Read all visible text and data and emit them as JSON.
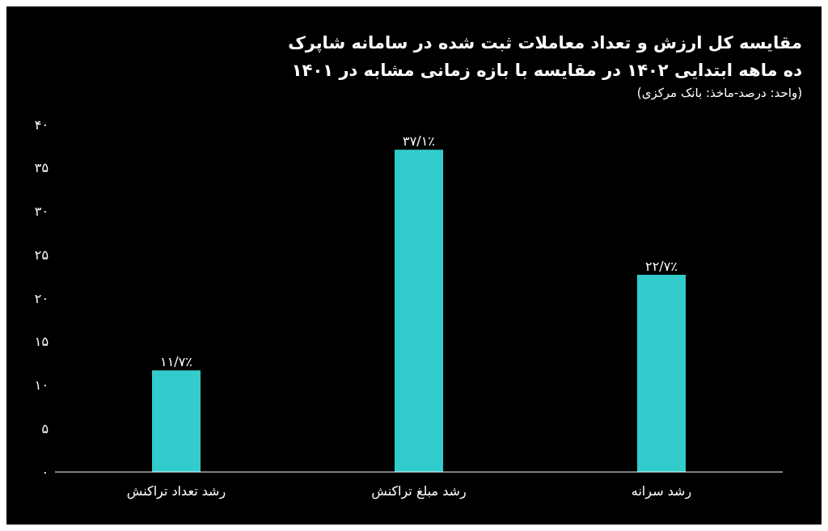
{
  "chart_data": {
    "type": "bar",
    "title": "مقایسه کل ارزش و تعداد معاملات ثبت شده در سامانه شاپرک ده ماهه ابتدایی ۱۴۰۲ در مقایسه با بازه زمانی مشابه در ۱۴۰۱",
    "subtitle": "(واحد: درصد-ماخذ: بانک مرکزی)",
    "categories": [
      "رشد تعداد تراکنش",
      "رشد مبلغ تراکنش",
      "رشد سرانه"
    ],
    "values": [
      11.7,
      37.1,
      22.7
    ],
    "color": "#33cccc",
    "value_labels": [
      "۱۱/۷٪",
      "۳۷/۱٪",
      "۲۲/۷٪"
    ],
    "ylim": [
      0,
      40
    ],
    "yticks": [
      {
        "value": 0,
        "label": "۰"
      },
      {
        "value": 5,
        "label": "۵"
      },
      {
        "value": 10,
        "label": "۱۰"
      },
      {
        "value": 15,
        "label": "۱۵"
      },
      {
        "value": 20,
        "label": "۲۰"
      },
      {
        "value": 25,
        "label": "۲۵"
      },
      {
        "value": 30,
        "label": "۳۰"
      },
      {
        "value": 35,
        "label": "۳۵"
      },
      {
        "value": 40,
        "label": "۴۰"
      }
    ],
    "grid": false,
    "legend": false
  }
}
